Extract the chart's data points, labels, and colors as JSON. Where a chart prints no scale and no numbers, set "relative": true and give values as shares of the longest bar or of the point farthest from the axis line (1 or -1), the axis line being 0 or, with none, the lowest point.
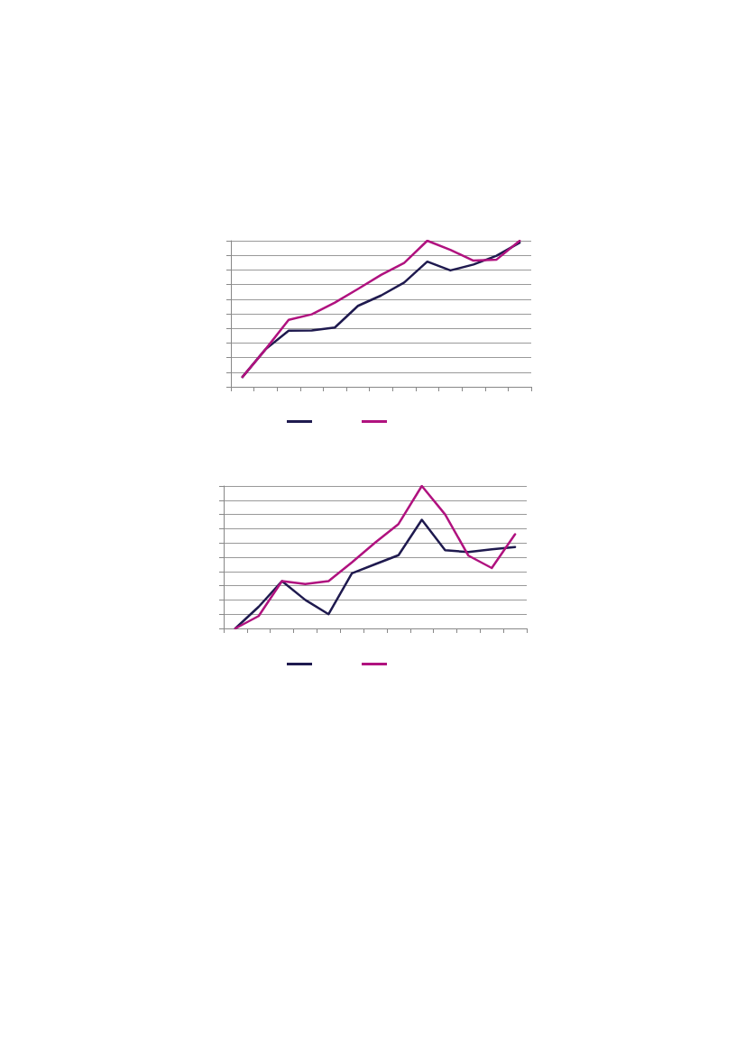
{
  "chart_data": [
    {
      "type": "line",
      "relative": true,
      "categories": [
        null,
        null,
        null,
        null,
        null,
        null,
        null,
        null,
        null,
        null,
        null,
        null,
        null
      ],
      "series": [
        {
          "color": "#1f1a4f",
          "values": [
            0.067,
            0.257,
            0.384,
            0.386,
            0.406,
            0.554,
            0.625,
            0.714,
            0.857,
            0.797,
            0.837,
            0.897,
            0.987
          ]
        },
        {
          "color": "#b0127f",
          "values": [
            0.067,
            0.257,
            0.458,
            0.496,
            0.576,
            0.67,
            0.766,
            0.848,
            1.0,
            0.9375,
            0.864,
            0.871,
            1.0
          ]
        }
      ],
      "grid": "y",
      "marker": "none",
      "line_style": "solid"
    },
    {
      "type": "line",
      "relative": true,
      "categories": [
        null,
        null,
        null,
        null,
        null,
        null,
        null,
        null,
        null,
        null,
        null,
        null,
        null
      ],
      "series": [
        {
          "color": "#1f1a4f",
          "values": [
            0,
            0.152,
            0.332,
            0.2,
            0.1,
            0.387,
            0.451,
            0.514,
            0.763,
            0.549,
            0.536,
            0.556,
            0.571
          ]
        },
        {
          "color": "#b0127f",
          "values": [
            0,
            0.087,
            0.332,
            0.312,
            0.332,
            0.464,
            0.603,
            0.733,
            1.0,
            0.8,
            0.511,
            0.424,
            0.661
          ]
        }
      ],
      "grid": "y",
      "marker": "none",
      "line_style": "solid"
    }
  ]
}
